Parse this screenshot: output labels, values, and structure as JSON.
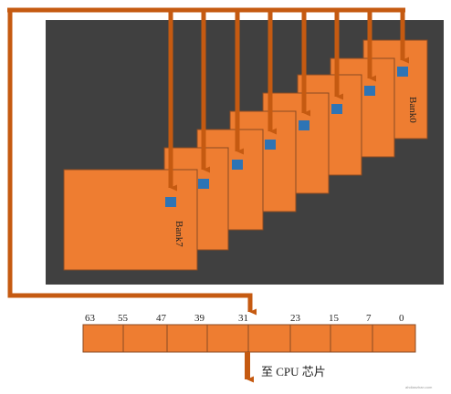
{
  "diagram": {
    "bank_first_label": "Bank0",
    "bank_last_label": "Bank7",
    "bank_count": 8,
    "bit_positions": [
      "63",
      "55",
      "47",
      "39",
      "31",
      "23",
      "15",
      "7",
      "0"
    ],
    "output_label": "至 CPU 芯片",
    "watermark": "ahdianzhan.com",
    "colors": {
      "bank_fill": "#EE7D31",
      "bank_stroke": "#8A4A22",
      "background_panel": "#404040",
      "cell_blue": "#2E74B5",
      "arrow": "#C55A11"
    }
  }
}
